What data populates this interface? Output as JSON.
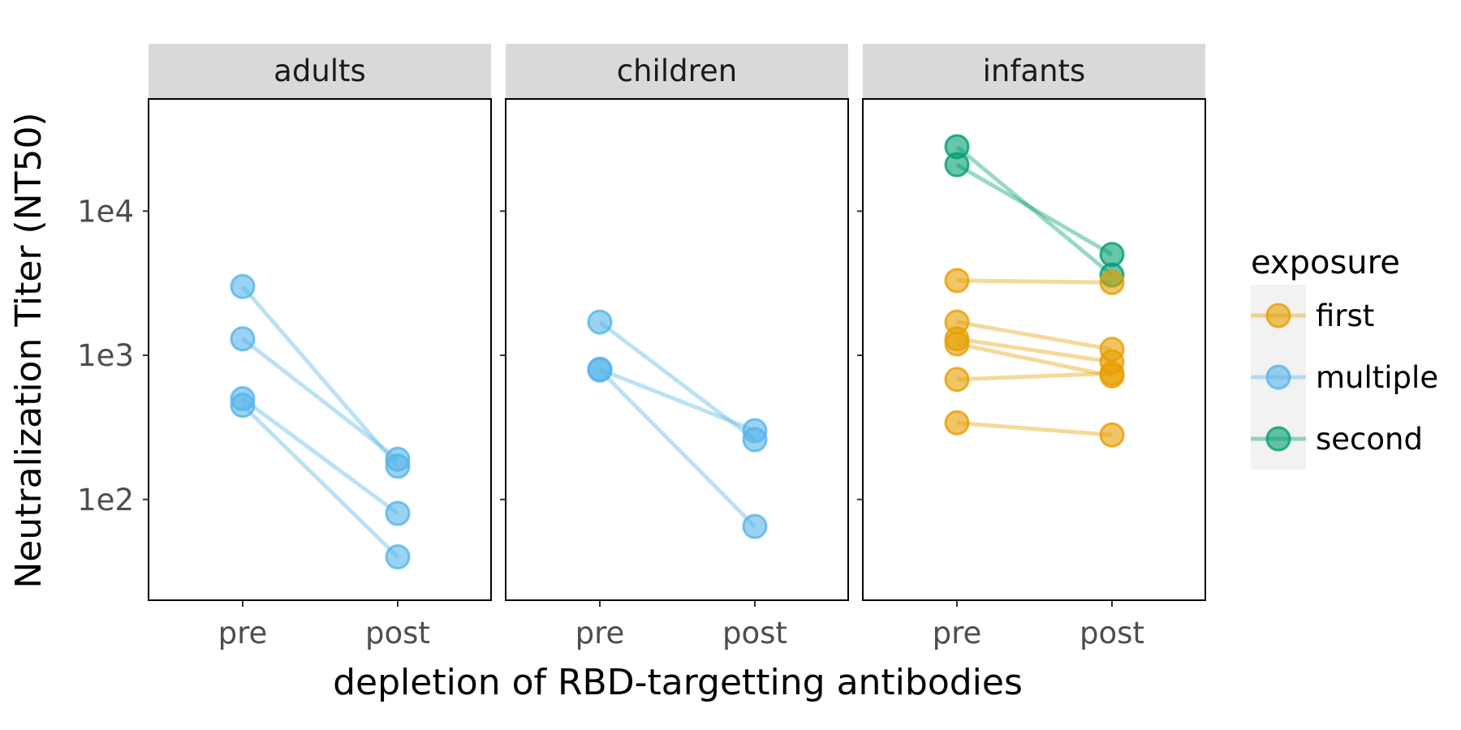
{
  "chart_data": {
    "type": "line",
    "xlabel": "depletion of RBD-targetting antibodies",
    "ylabel": "Neutralization Titer (NT50)",
    "x_categories": [
      "pre",
      "post"
    ],
    "y_scale": "log10",
    "ylim": [
      20,
      60000
    ],
    "y_ticks": [
      100,
      1000,
      10000
    ],
    "y_tick_labels": [
      "1e2",
      "1e3",
      "1e4"
    ],
    "grid": false,
    "legend": {
      "title": "exposure",
      "position": "right",
      "entries": [
        {
          "label": "first",
          "color": "#E69F00"
        },
        {
          "label": "multiple",
          "color": "#56B4E9"
        },
        {
          "label": "second",
          "color": "#009E73"
        }
      ]
    },
    "panels": [
      {
        "label": "adults",
        "subjects": [
          {
            "exposure": "multiple",
            "pre": 3000,
            "post": 170
          },
          {
            "exposure": "multiple",
            "pre": 1300,
            "post": 190
          },
          {
            "exposure": "multiple",
            "pre": 500,
            "post": 80
          },
          {
            "exposure": "multiple",
            "pre": 450,
            "post": 40
          }
        ]
      },
      {
        "label": "children",
        "subjects": [
          {
            "exposure": "multiple",
            "pre": 1700,
            "post": 260
          },
          {
            "exposure": "multiple",
            "pre": 800,
            "post": 300
          },
          {
            "exposure": "multiple",
            "pre": 790,
            "post": 65
          }
        ]
      },
      {
        "label": "infants",
        "subjects": [
          {
            "exposure": "second",
            "pre": 28000,
            "post": 3600
          },
          {
            "exposure": "second",
            "pre": 21000,
            "post": 5000
          },
          {
            "exposure": "first",
            "pre": 3300,
            "post": 3200
          },
          {
            "exposure": "first",
            "pre": 1700,
            "post": 1100
          },
          {
            "exposure": "first",
            "pre": 1300,
            "post": 900
          },
          {
            "exposure": "first",
            "pre": 1200,
            "post": 720
          },
          {
            "exposure": "first",
            "pre": 680,
            "post": 750
          },
          {
            "exposure": "first",
            "pre": 340,
            "post": 280
          }
        ]
      }
    ]
  }
}
